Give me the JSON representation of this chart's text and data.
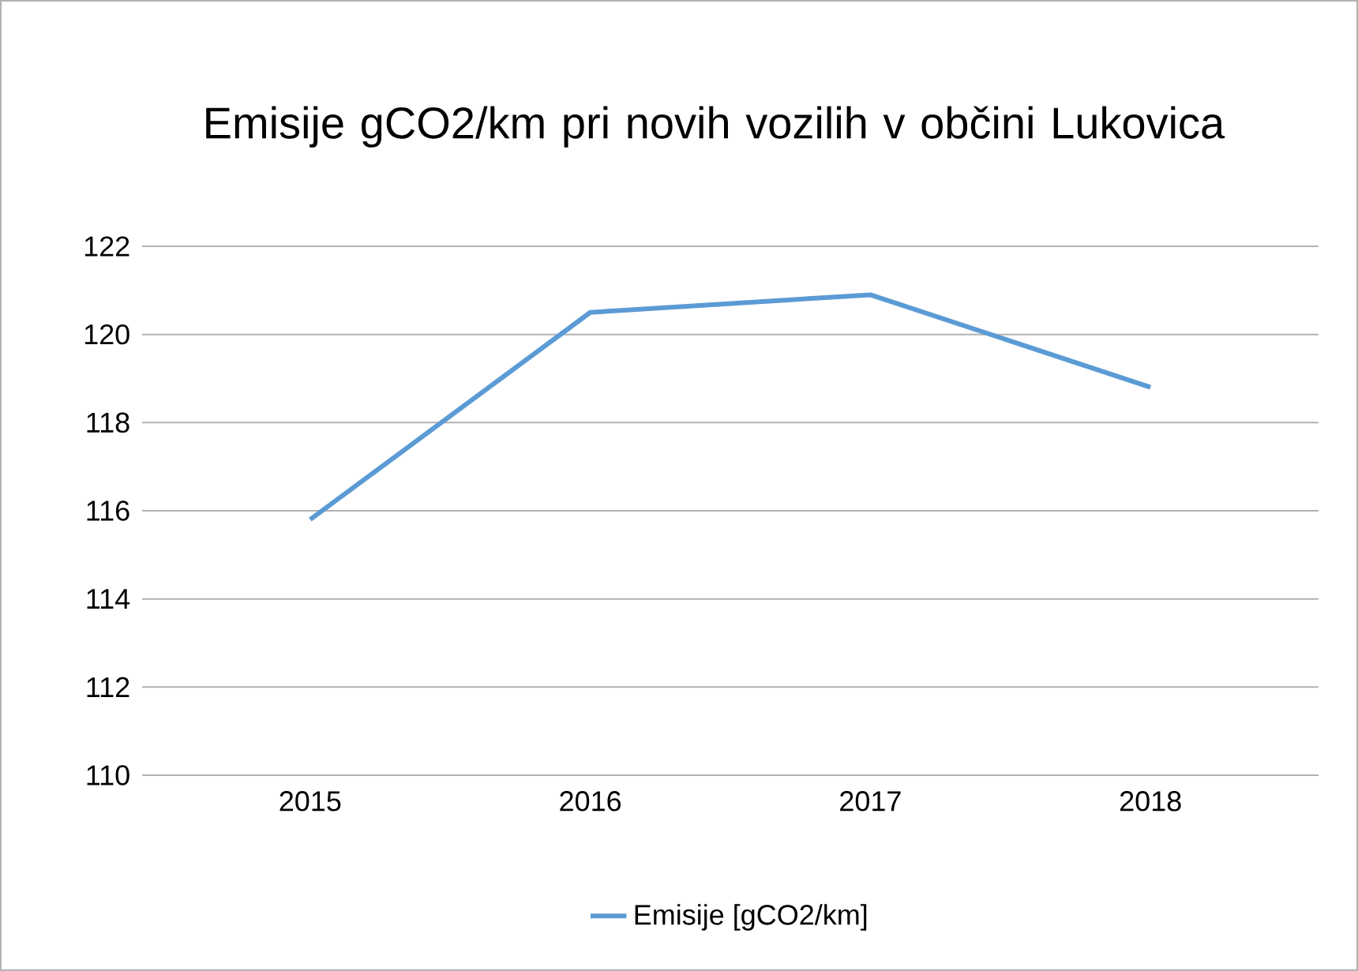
{
  "chart_data": {
    "type": "line",
    "title": "Emisije gCO2/km pri novih vozilih v občini Lukovica",
    "categories": [
      "2015",
      "2016",
      "2017",
      "2018"
    ],
    "series": [
      {
        "name": "Emisije [gCO2/km]",
        "color": "#5b9bd5",
        "values": [
          115.8,
          120.5,
          120.9,
          118.8
        ]
      }
    ],
    "ylim": [
      110,
      122
    ],
    "yticks": [
      110,
      112,
      114,
      116,
      118,
      120,
      122
    ],
    "grid": "y",
    "legend": "bottom"
  }
}
